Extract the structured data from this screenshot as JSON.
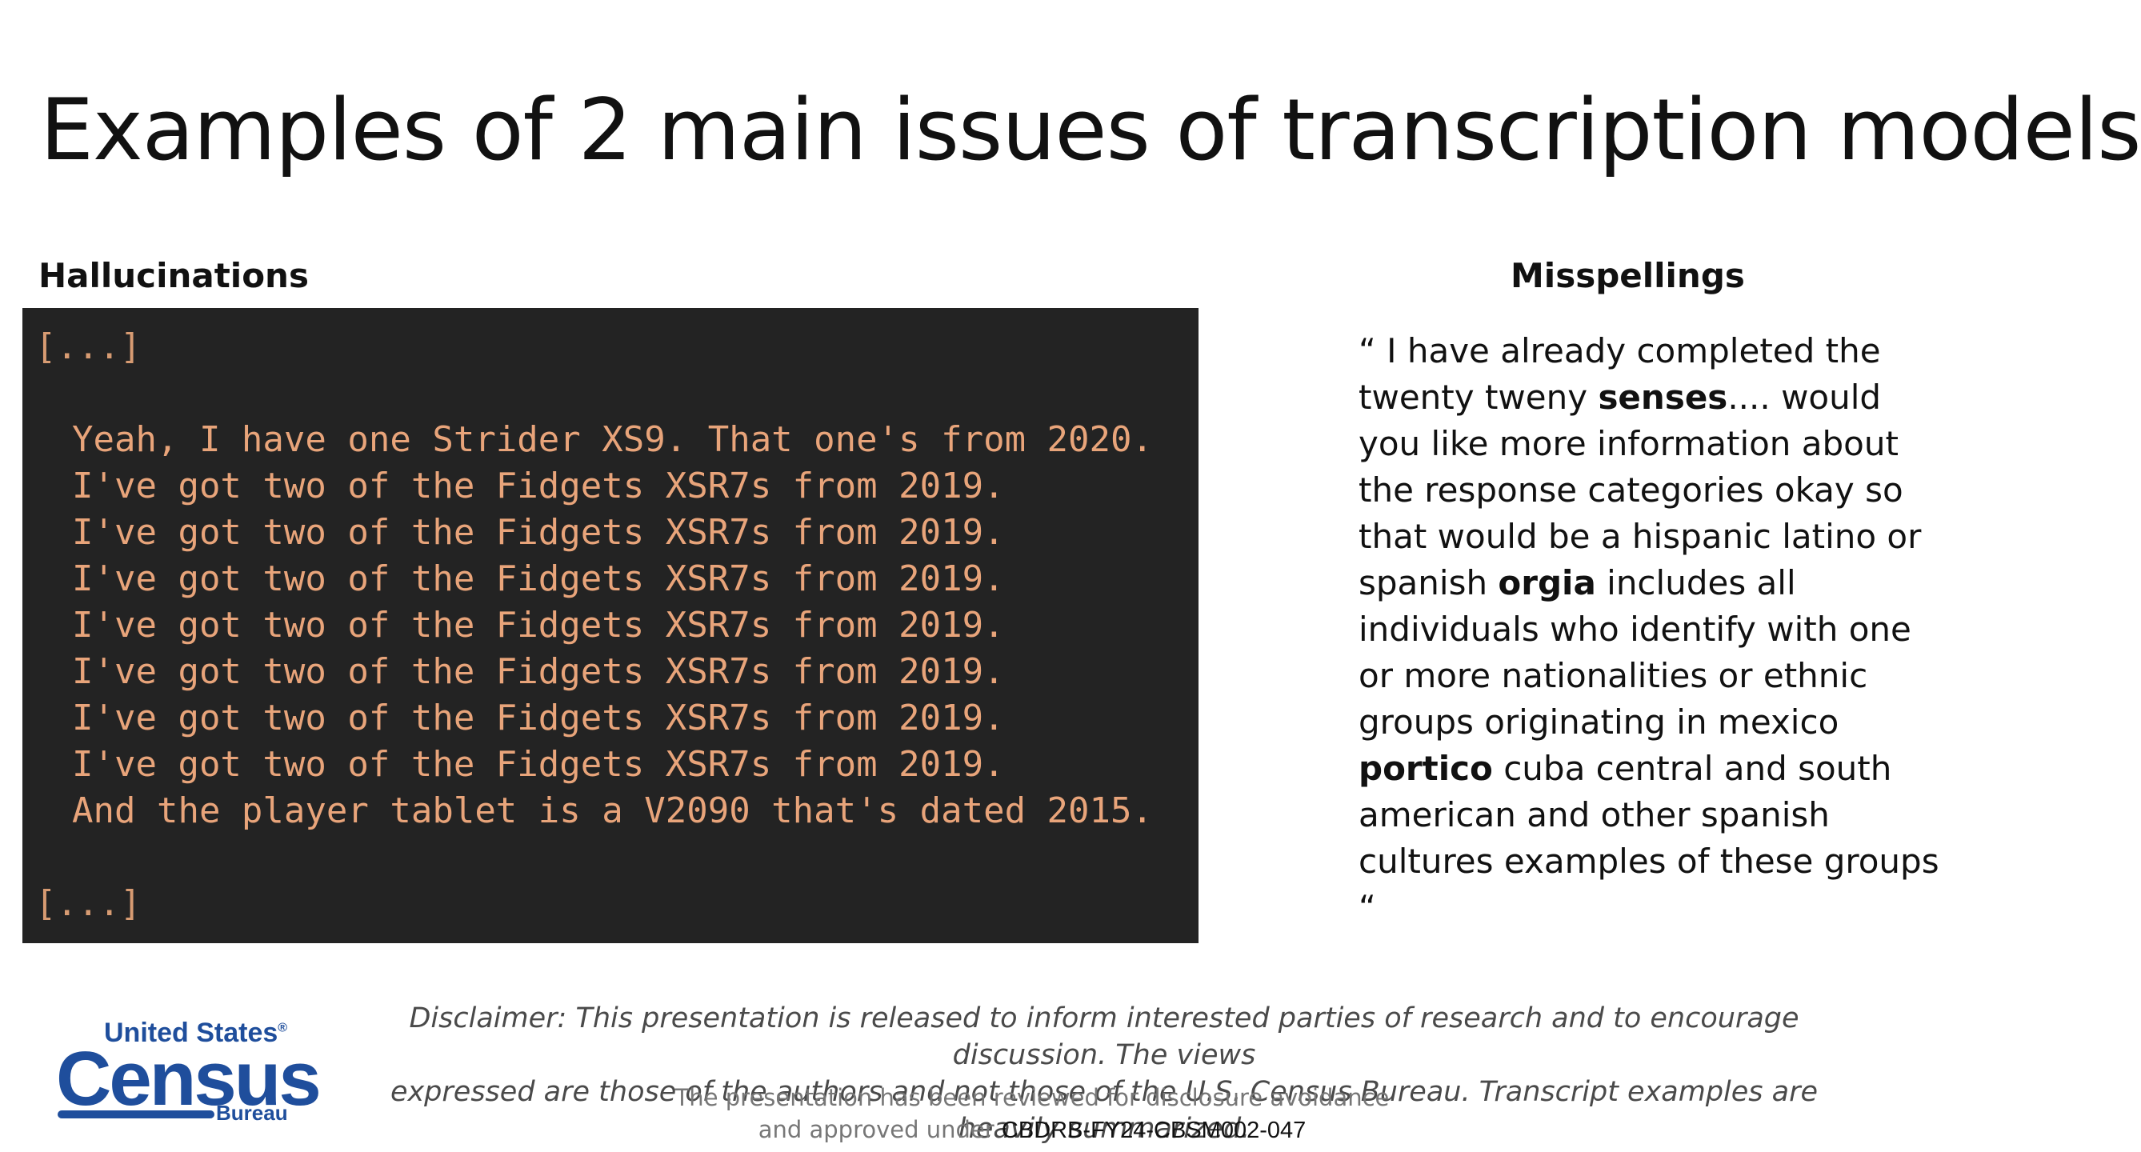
{
  "title": "Examples of 2 main issues of transcription models",
  "hallucinations": {
    "heading": "Hallucinations",
    "ellipsis_top": "[...]",
    "lines": [
      "Yeah, I have one Strider XS9. That one's from 2020.",
      "I've got two of the Fidgets XSR7s from 2019.",
      "I've got two of the Fidgets XSR7s from 2019.",
      "I've got two of the Fidgets XSR7s from 2019.",
      "I've got two of the Fidgets XSR7s from 2019.",
      "I've got two of the Fidgets XSR7s from 2019.",
      "I've got two of the Fidgets XSR7s from 2019.",
      "I've got two of the Fidgets XSR7s from 2019.",
      "And the player tablet is a V2090 that's dated 2015."
    ],
    "ellipsis_bottom": "[...]"
  },
  "misspellings": {
    "heading": "Misspellings",
    "quote": {
      "p1": "“ I have already completed the twenty tweny ",
      "b1": "senses",
      "p2": ".... would you like more information about the response categories okay so that would be a hispanic latino or spanish ",
      "b2": "orgia",
      "p3": " includes all individuals who identify with one or more nationalities or ethnic groups originating in mexico ",
      "b3": "portico",
      "p4": " cuba central and south american and other spanish cultures examples of these groups “"
    }
  },
  "logo": {
    "united_states": "United States",
    "registered": "®",
    "census": "Census",
    "bureau": "Bureau"
  },
  "disclaimer": {
    "line1": "Disclaimer: This presentation is released to inform interested parties of research and to encourage discussion. The views",
    "line2": "expressed are those of the authors and not those of the U.S. Census Bureau. Transcript examples are heavily summarized."
  },
  "review": {
    "line1": "The presentation has been reviewed for disclosure avoidance",
    "line2_prefix": "and approved under ",
    "approval_code": "CBDRB-FY24-CBSM002-047"
  }
}
